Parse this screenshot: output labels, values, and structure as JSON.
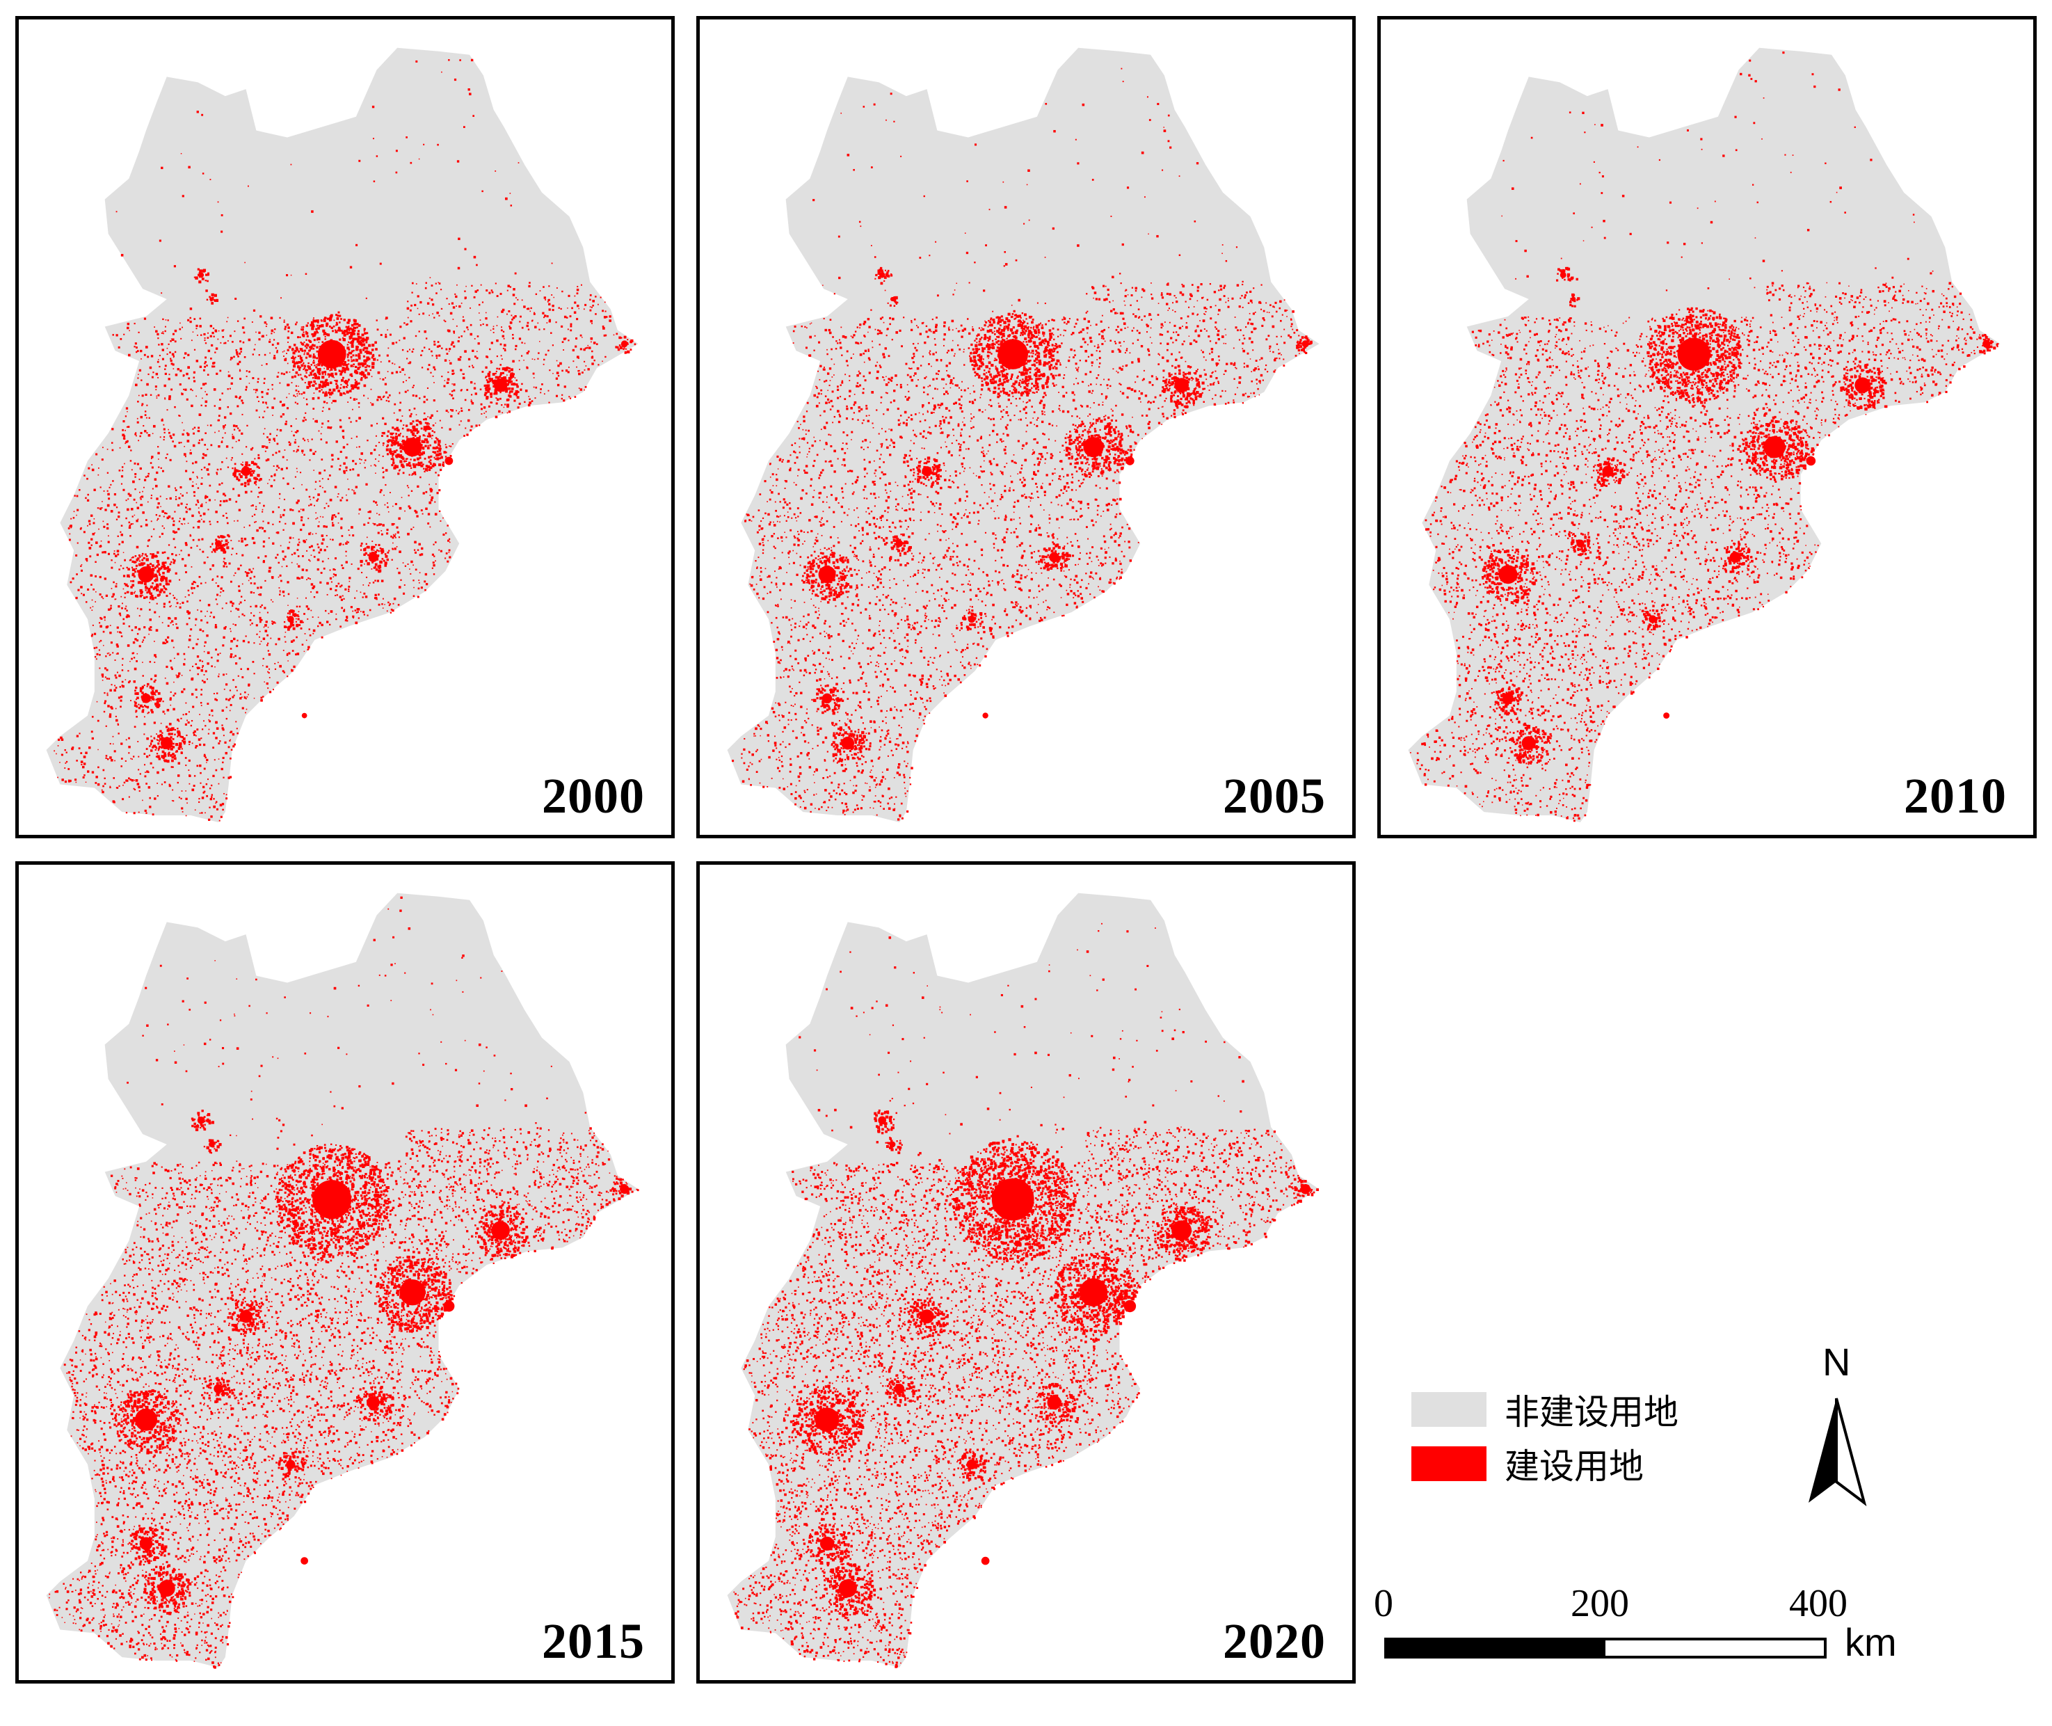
{
  "panels": [
    {
      "year": "2000",
      "intensity": 0.3
    },
    {
      "year": "2005",
      "intensity": 0.38
    },
    {
      "year": "2010",
      "intensity": 0.48
    },
    {
      "year": "2015",
      "intensity": 0.72
    },
    {
      "year": "2020",
      "intensity": 0.85
    }
  ],
  "legend": {
    "non_built": {
      "label": "非建设用地",
      "color": "#e0e0e0"
    },
    "built": {
      "label": "建设用地",
      "color": "#ff0000"
    }
  },
  "north_arrow": {
    "label": "N"
  },
  "scale_bar": {
    "ticks": [
      "0",
      "200",
      "400"
    ],
    "unit": "km",
    "filled_fraction": 0.5
  }
}
